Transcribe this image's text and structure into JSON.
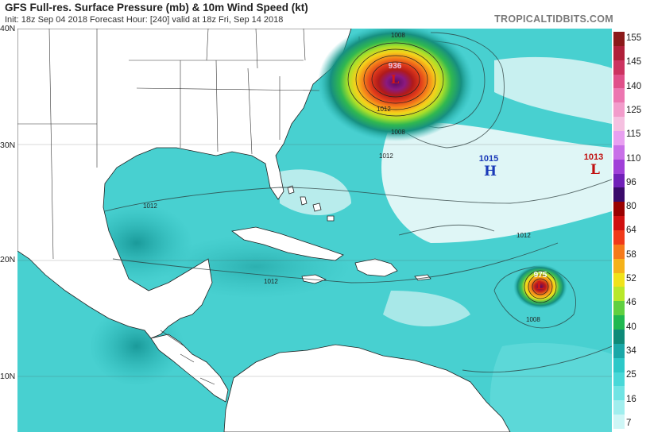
{
  "header": {
    "title": "GFS Full-res. Surface Pressure (mb) & 10m Wind Speed (kt)",
    "subtitle": "Init: 18z Sep 04 2018   Forecast Hour: [240]   valid at 18z Fri, Sep 14 2018",
    "brand": "TROPICALTIDBITS.COM"
  },
  "lat_labels": [
    "40N",
    "30N",
    "20N",
    "10N"
  ],
  "colorbar": {
    "ticks": [
      "155",
      "145",
      "140",
      "125",
      "115",
      "110",
      "96",
      "80",
      "64",
      "58",
      "52",
      "46",
      "40",
      "34",
      "25",
      "16",
      "7"
    ],
    "colors": [
      "#8b1a1a",
      "#b0203a",
      "#cc3360",
      "#e0508a",
      "#ec76b0",
      "#f29ccb",
      "#f5c0e0",
      "#e8a0f0",
      "#c870e8",
      "#a040d8",
      "#7020b8",
      "#3a0a6a",
      "#9a0000",
      "#d01010",
      "#f03a1a",
      "#f57a1a",
      "#f5b21a",
      "#f0e21a",
      "#b8e82a",
      "#60d040",
      "#20b850",
      "#0e8a78",
      "#1aa8a8",
      "#2cc8c8",
      "#48d8d8",
      "#70e4e4",
      "#a0eeee",
      "#cef6f6"
    ]
  },
  "markers": {
    "high_atlantic": {
      "letter": "H",
      "value": "1015",
      "color": "#1a3ab8"
    },
    "low_east": {
      "letter": "L",
      "value": "1013",
      "color": "#c01010"
    },
    "low_north": {
      "letter": "L",
      "value": "936",
      "color": "#c01010"
    },
    "low_south": {
      "letter": "L",
      "value": "975",
      "color": "#c01010"
    }
  },
  "isobar_labels": {
    "a": "1012",
    "b": "1012",
    "c": "1012",
    "d": "1008",
    "e": "1008",
    "f": "1012",
    "g": "1008",
    "h": "1012"
  }
}
